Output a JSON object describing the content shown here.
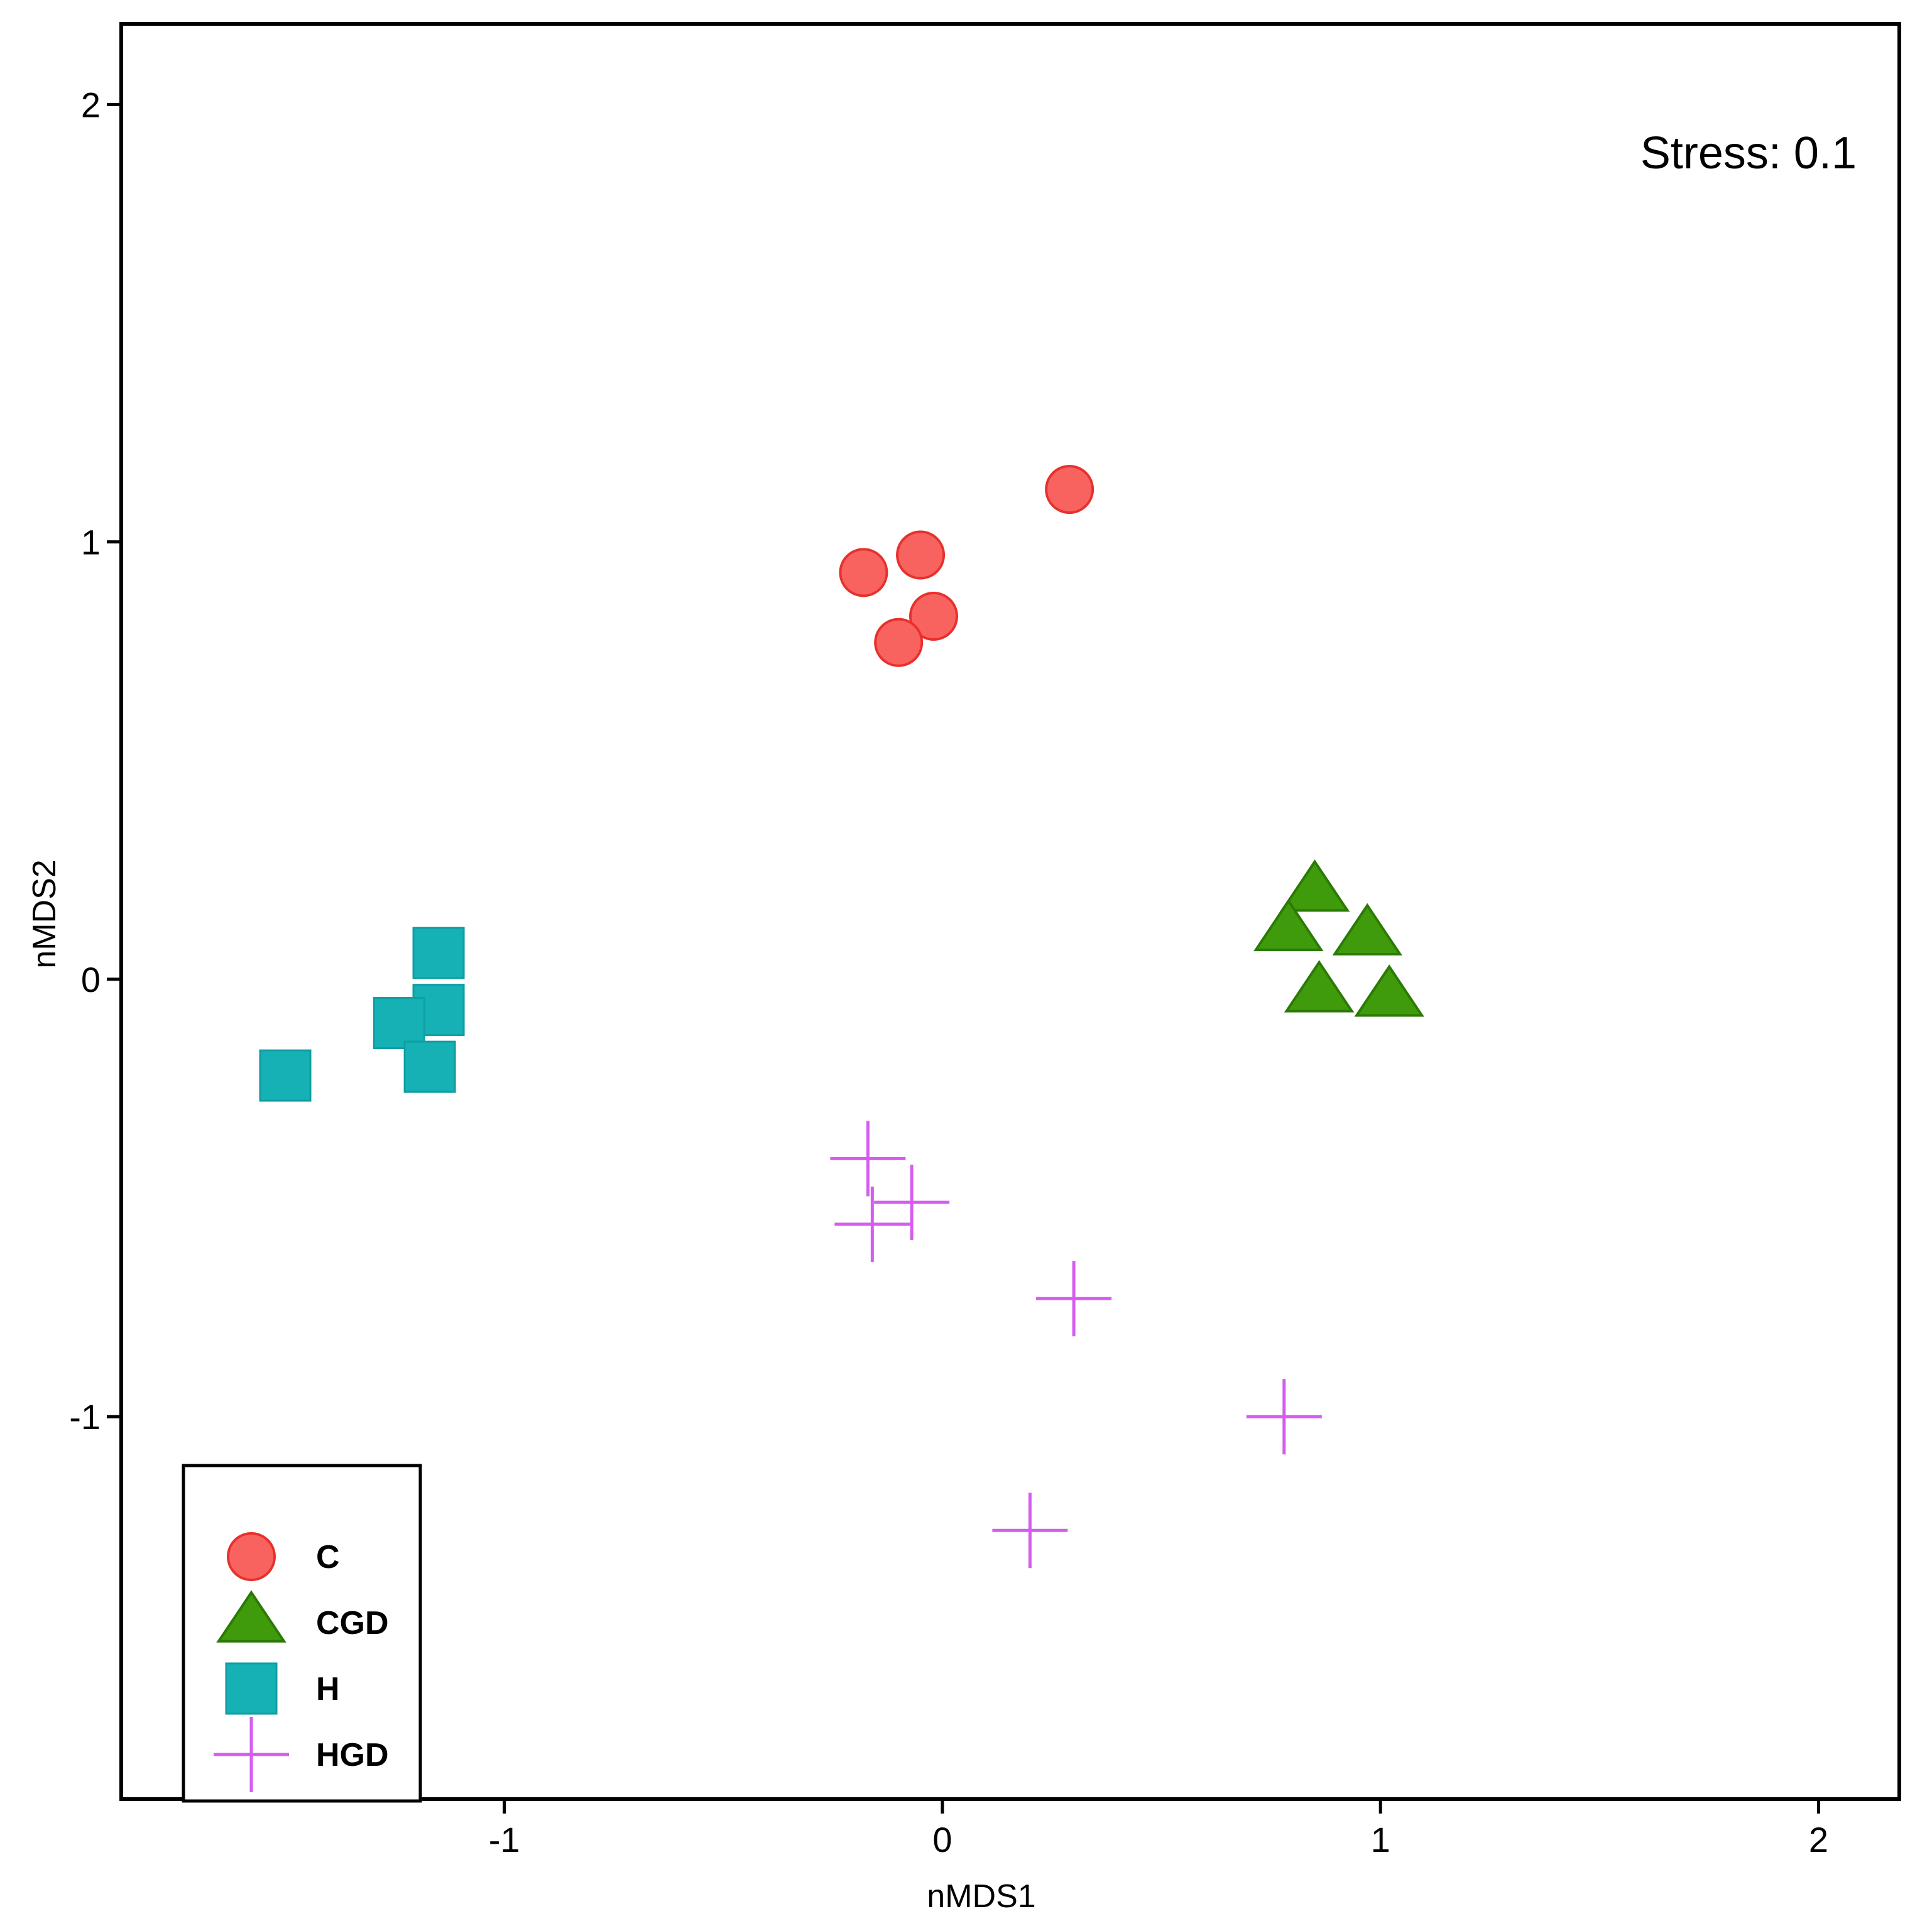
{
  "chart_data": {
    "type": "scatter",
    "xlabel": "nMDS1",
    "ylabel": "nMDS2",
    "xlim": [
      -1.87,
      2.18
    ],
    "ylim": [
      -1.87,
      2.18
    ],
    "xticks": [
      -1,
      0,
      1,
      2
    ],
    "yticks": [
      -1,
      0,
      1,
      2
    ],
    "annotation": "Stress: 0.1",
    "legend_position": "bottom-left",
    "series": [
      {
        "name": "C",
        "marker": "circle",
        "color": "#f8635f",
        "stroke": "#e8302c",
        "points": [
          {
            "x": 0.29,
            "y": 1.12
          },
          {
            "x": -0.05,
            "y": 0.97
          },
          {
            "x": -0.18,
            "y": 0.93
          },
          {
            "x": -0.02,
            "y": 0.83
          },
          {
            "x": -0.1,
            "y": 0.77
          }
        ]
      },
      {
        "name": "CGD",
        "marker": "triangle",
        "color": "#3f9b0b",
        "stroke": "#2b7a05",
        "points": [
          {
            "x": 0.85,
            "y": 0.2
          },
          {
            "x": 0.79,
            "y": 0.11
          },
          {
            "x": 0.97,
            "y": 0.1
          },
          {
            "x": 0.86,
            "y": -0.03
          },
          {
            "x": 1.02,
            "y": -0.04
          }
        ]
      },
      {
        "name": "H",
        "marker": "square",
        "color": "#16b1b5",
        "stroke": "#0f9ea3",
        "points": [
          {
            "x": -1.15,
            "y": 0.06
          },
          {
            "x": -1.15,
            "y": -0.07
          },
          {
            "x": -1.24,
            "y": -0.1
          },
          {
            "x": -1.17,
            "y": -0.2
          },
          {
            "x": -1.5,
            "y": -0.22
          }
        ]
      },
      {
        "name": "HGD",
        "marker": "plus",
        "color": "#d65cf0",
        "stroke": "#d65cf0",
        "points": [
          {
            "x": -0.17,
            "y": -0.41
          },
          {
            "x": -0.07,
            "y": -0.51
          },
          {
            "x": -0.16,
            "y": -0.56
          },
          {
            "x": 0.3,
            "y": -0.73
          },
          {
            "x": 0.78,
            "y": -1.0
          },
          {
            "x": 0.2,
            "y": -1.26
          }
        ]
      }
    ]
  }
}
